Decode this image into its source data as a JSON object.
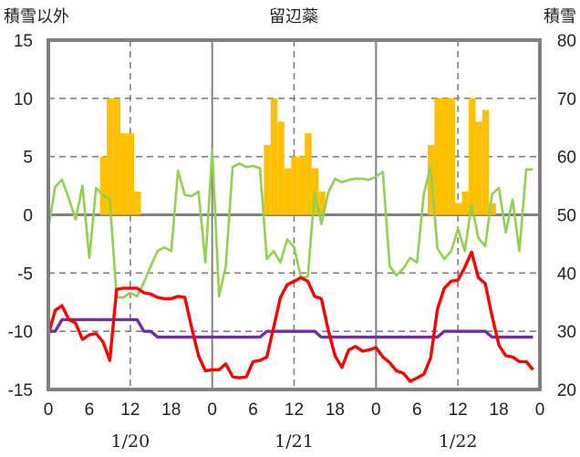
{
  "chart_data": {
    "type": "bar+line",
    "title": "留辺蘂",
    "left_axis_label": "積雪以外",
    "right_axis_label": "積雪",
    "left_ylim": [
      -15,
      15
    ],
    "left_ticks": [
      "15",
      "10",
      "5",
      "0",
      "-5",
      "-10",
      "-15"
    ],
    "right_ylim": [
      20,
      80
    ],
    "right_ticks": [
      "80",
      "70",
      "60",
      "50",
      "40",
      "30",
      "20"
    ],
    "x_range_hours": [
      0,
      72
    ],
    "x_tick_labels": [
      "0",
      "6",
      "12",
      "18",
      "0",
      "6",
      "12",
      "18",
      "0",
      "6",
      "12",
      "18",
      "0"
    ],
    "date_labels": [
      "1/20",
      "1/21",
      "1/22"
    ],
    "grid": "dashed horizontal at 5-unit steps; dashed vertical at 12h, solid at day boundaries",
    "colors": {
      "bars": "#FFC000",
      "temperature": "#FF0000",
      "green": "#92D050",
      "snow_depth": "#7030A0",
      "grid": "#808080"
    },
    "bars": {
      "axis": "left",
      "hours": [
        8,
        9,
        10,
        11,
        12,
        13,
        32,
        33,
        34,
        35,
        36,
        37,
        38,
        39,
        40,
        56,
        57,
        58,
        59,
        60,
        61,
        62,
        63,
        64,
        65
      ],
      "values": [
        5,
        10,
        10,
        7,
        7,
        2,
        6,
        10,
        8,
        4,
        5,
        5,
        7,
        4,
        2,
        6,
        10,
        10,
        10,
        1,
        2,
        10,
        8,
        9,
        1
      ]
    },
    "series": [
      {
        "name": "red",
        "axis": "left",
        "values": [
          -10.3,
          -8.2,
          -7.8,
          -9.0,
          -9.3,
          -10.7,
          -10.3,
          -10.2,
          -10.9,
          -12.5,
          -6.4,
          -6.3,
          -6.3,
          -6.3,
          -6.7,
          -6.8,
          -7.1,
          -7.2,
          -7.2,
          -7.0,
          -7.1,
          -9.7,
          -12.1,
          -13.4,
          -13.3,
          -13.3,
          -12.8,
          -13.9,
          -14.0,
          -13.9,
          -12.6,
          -12.5,
          -12.2,
          -9.7,
          -7.1,
          -6.0,
          -5.7,
          -5.4,
          -5.7,
          -7.0,
          -7.2,
          -9.9,
          -12.1,
          -13.1,
          -11.6,
          -11.3,
          -11.7,
          -11.6,
          -11.4,
          -12.2,
          -12.7,
          -13.4,
          -13.6,
          -14.3,
          -14.0,
          -13.7,
          -12.3,
          -8.1,
          -6.3,
          -5.7,
          -5.6,
          -4.5,
          -3.2,
          -5.4,
          -5.9,
          -8.7,
          -11.2,
          -12.1,
          -12.2,
          -12.6,
          -12.6,
          -13.3
        ]
      },
      {
        "name": "green",
        "axis": "left",
        "values": [
          -1.2,
          2.4,
          3.0,
          1.4,
          -0.4,
          2.5,
          -3.7,
          2.3,
          1.7,
          1.3,
          -7.1,
          -7.1,
          -6.7,
          -7.0,
          -5.8,
          -4.4,
          -3.1,
          -2.8,
          -3.1,
          3.8,
          1.7,
          1.6,
          2.0,
          -4.1,
          5.6,
          -7.0,
          -4.4,
          4.1,
          4.4,
          4.1,
          4.2,
          4.0,
          -3.8,
          -3.1,
          -4.1,
          -2.1,
          -2.8,
          -5.4,
          -5.3,
          1.9,
          -0.8,
          1.9,
          3.1,
          2.8,
          3.0,
          3.1,
          3.1,
          3.0,
          3.3,
          3.7,
          -4.4,
          -5.2,
          -4.6,
          -3.7,
          -4.1,
          1.8,
          4.1,
          -2.9,
          -3.8,
          -3.1,
          -1.2,
          -3.1,
          0.9,
          -2.0,
          -2.7,
          1.8,
          2.3,
          -1.5,
          1.3,
          -3.1,
          3.9,
          3.9
        ]
      },
      {
        "name": "purple",
        "axis": "right",
        "values": [
          30,
          30,
          32,
          32,
          32,
          32,
          32,
          32,
          32,
          32,
          32,
          32,
          32,
          32,
          30,
          30,
          29,
          29,
          29,
          29,
          29,
          29,
          29,
          29,
          29,
          29,
          29,
          29,
          29,
          29,
          29,
          29,
          30,
          30,
          30,
          30,
          30,
          30,
          30,
          30,
          29,
          29,
          29,
          29,
          29,
          29,
          29,
          29,
          29,
          29,
          29,
          29,
          29,
          29,
          29,
          29,
          29,
          29,
          30,
          30,
          30,
          30,
          30,
          30,
          30,
          29,
          29,
          29,
          29,
          29,
          29,
          29
        ]
      }
    ]
  }
}
